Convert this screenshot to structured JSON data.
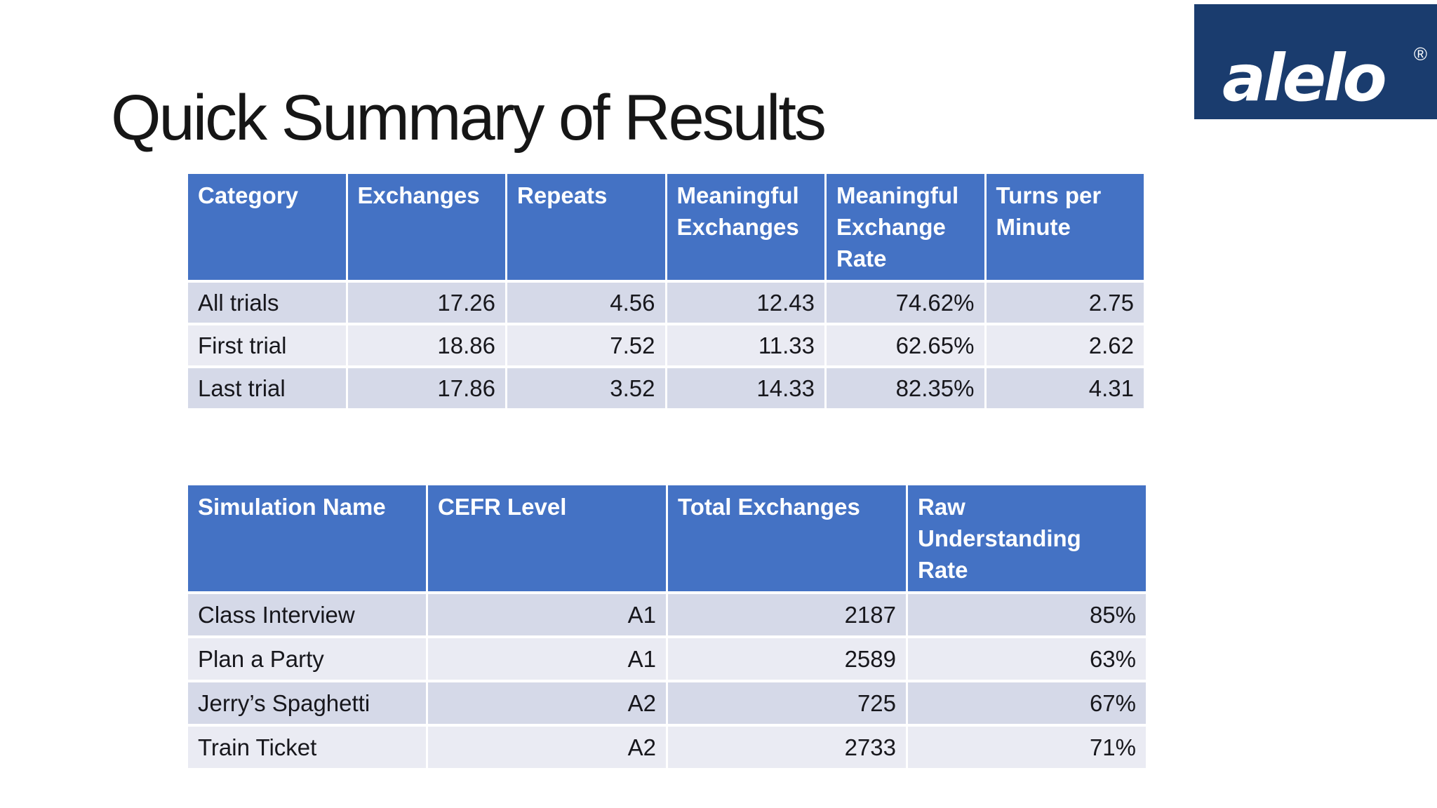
{
  "slide": {
    "title": "Quick Summary of Results"
  },
  "logo": {
    "brand": "alelo",
    "mark": "®"
  },
  "colors": {
    "table_header_blue": "#4472C4",
    "row_band_dark": "#D5D9E8",
    "row_band_light": "#EAEBF3",
    "logo_navy": "#1A3C6E",
    "header_text": "#FFFFFF",
    "body_text": "#17171C"
  },
  "summary_table": {
    "headers": [
      "Category",
      "Exchanges",
      "Repeats",
      "Meaningful\nExchanges",
      "Meaningful\nExchange\nRate",
      "Turns per\nMinute"
    ],
    "rows": [
      [
        "All trials",
        "17.26",
        "4.56",
        "12.43",
        "74.62%",
        "2.75"
      ],
      [
        "First trial",
        "18.86",
        "7.52",
        "11.33",
        "62.65%",
        "2.62"
      ],
      [
        "Last trial",
        "17.86",
        "3.52",
        "14.33",
        "82.35%",
        "4.31"
      ]
    ]
  },
  "simulation_table": {
    "headers": [
      "Simulation Name",
      "CEFR Level",
      "Total Exchanges",
      "Raw\nUnderstanding\nRate"
    ],
    "rows": [
      [
        "Class Interview",
        "A1",
        "2187",
        "85%"
      ],
      [
        "Plan a Party",
        "A1",
        "2589",
        "63%"
      ],
      [
        "Jerry’s Spaghetti",
        "A2",
        "725",
        "67%"
      ],
      [
        "Train Ticket",
        "A2",
        "2733",
        "71%"
      ]
    ]
  }
}
